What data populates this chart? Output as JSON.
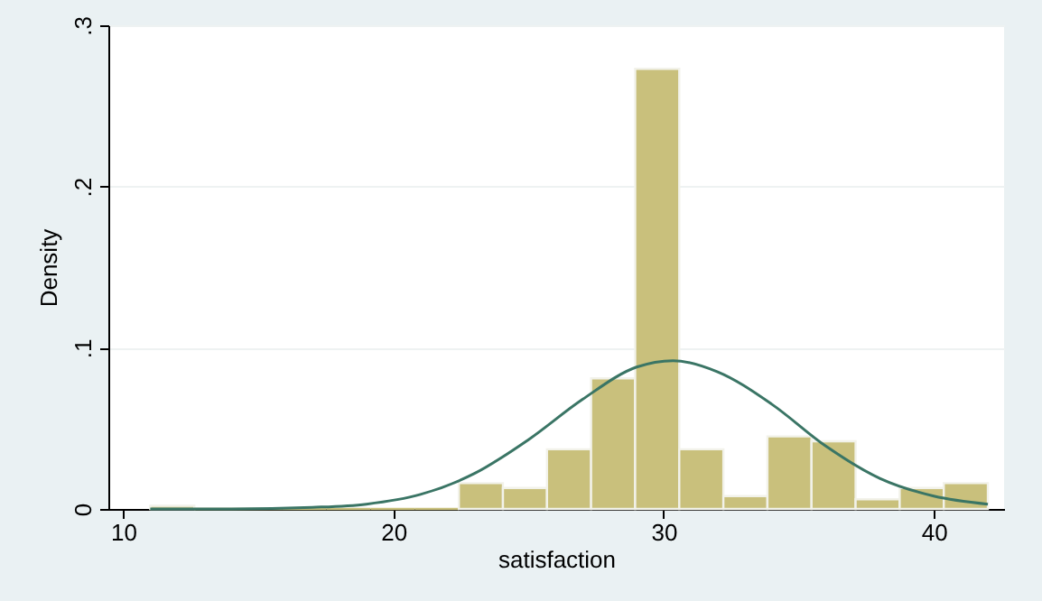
{
  "chart_data": {
    "type": "histogram",
    "xlabel": "satisfaction",
    "ylabel": "Density",
    "xlim": [
      9.45,
      42.6
    ],
    "xticks": [
      10,
      20,
      30,
      40
    ],
    "ylim": [
      0,
      0.3
    ],
    "yticks": [
      0,
      {
        "value": 0.1,
        "label": ".1"
      },
      {
        "value": 0.2,
        "label": ".2"
      },
      {
        "value": 0.3,
        "label": ".3"
      }
    ],
    "grid": "y",
    "series": [
      {
        "color": "#c9c07c",
        "bins": [
          11,
          12.632,
          14.263,
          15.895,
          17.526,
          19.158,
          20.789,
          22.421,
          24.053,
          25.684,
          27.316,
          28.947,
          30.579,
          32.211,
          33.842,
          35.474,
          37.105,
          38.737,
          40.368,
          42
        ],
        "values": [
          0.002,
          0,
          0,
          0,
          0,
          0,
          0,
          0.016,
          0.013,
          0.037,
          0.081,
          0.273,
          0.037,
          0.008,
          0.045,
          0.042,
          0.006,
          0.013,
          0.016
        ]
      },
      {
        "type": "line",
        "color": "#3a7565",
        "x": [
          11,
          14,
          17,
          19,
          21,
          23,
          25,
          27,
          29,
          30.35,
          32,
          34,
          36,
          38,
          40,
          42
        ],
        "values": [
          0,
          0,
          0.001,
          0.003,
          0.009,
          0.022,
          0.043,
          0.068,
          0.088,
          0.092,
          0.085,
          0.065,
          0.039,
          0.019,
          0.008,
          0.003
        ]
      }
    ]
  }
}
